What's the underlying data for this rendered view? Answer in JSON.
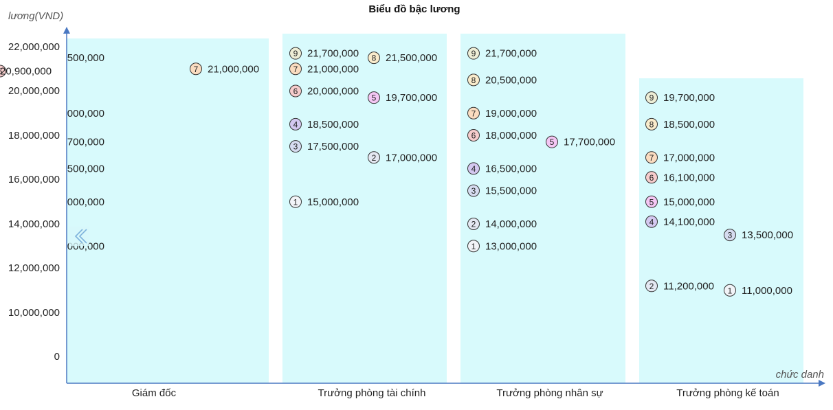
{
  "chart_data": {
    "type": "scatter",
    "title": "Biểu đồ bậc lương",
    "ylabel": "lương(VND)",
    "xlabel": "chức danh",
    "y_ticks": [
      "0",
      "10,000,000",
      "12,000,000",
      "14,000,000",
      "16,000,000",
      "18,000,000",
      "20,000,000",
      "22,000,000"
    ],
    "grid": false,
    "collapse_icon": "double-chevron-left-icon",
    "level_colors": {
      "1": "#f2f4f8",
      "2": "#e4e8f2",
      "3": "#d6dcf0",
      "4": "#d4c8f0",
      "5": "#f4c6f4",
      "6": "#f6cccc",
      "7": "#fadcc0",
      "8": "#faeccc",
      "9": "#eeeed6"
    },
    "categories": [
      {
        "name": "Giám đốc",
        "levels": [
          {
            "level": 7,
            "label": "21,000,000",
            "col": 1
          },
          {
            "level": 6,
            "label": "20,900,000",
            "col": 2
          }
        ],
        "clipped_labels": [
          {
            "label": "500,000",
            "value": 21500000
          },
          {
            "label": "000,000",
            "value": 19000000
          },
          {
            "label": "700,000",
            "value": 17700000
          },
          {
            "label": "500,000",
            "value": 16500000
          },
          {
            "label": "000,000",
            "value": 15000000
          },
          {
            "label": "000,000",
            "value": 13000000
          }
        ]
      },
      {
        "name": "Trưởng phòng tài chính",
        "levels": [
          {
            "level": 9,
            "label": "21,700,000",
            "col": 0
          },
          {
            "level": 8,
            "label": "21,500,000",
            "col": 1
          },
          {
            "level": 7,
            "label": "21,000,000",
            "col": 0
          },
          {
            "level": 6,
            "label": "20,000,000",
            "col": 0
          },
          {
            "level": 5,
            "label": "19,700,000",
            "col": 1
          },
          {
            "level": 4,
            "label": "18,500,000",
            "col": 0
          },
          {
            "level": 3,
            "label": "17,500,000",
            "col": 0
          },
          {
            "level": 2,
            "label": "17,000,000",
            "col": 1
          },
          {
            "level": 1,
            "label": "15,000,000",
            "col": 0
          }
        ]
      },
      {
        "name": "Trưởng phòng nhân sự",
        "levels": [
          {
            "level": 9,
            "label": "21,700,000",
            "col": 0
          },
          {
            "level": 8,
            "label": "20,500,000",
            "col": 0
          },
          {
            "level": 7,
            "label": "19,000,000",
            "col": 0
          },
          {
            "level": 6,
            "label": "18,000,000",
            "col": 0
          },
          {
            "level": 5,
            "label": "17,700,000",
            "col": 1
          },
          {
            "level": 4,
            "label": "16,500,000",
            "col": 0
          },
          {
            "level": 3,
            "label": "15,500,000",
            "col": 0
          },
          {
            "level": 2,
            "label": "14,000,000",
            "col": 0
          },
          {
            "level": 1,
            "label": "13,000,000",
            "col": 0
          }
        ]
      },
      {
        "name": "Trưởng phòng kế toán",
        "levels": [
          {
            "level": 9,
            "label": "19,700,000",
            "col": 0
          },
          {
            "level": 8,
            "label": "18,500,000",
            "col": 0
          },
          {
            "level": 7,
            "label": "17,000,000",
            "col": 0
          },
          {
            "level": 6,
            "label": "16,100,000",
            "col": 0
          },
          {
            "level": 5,
            "label": "15,000,000",
            "col": 0
          },
          {
            "level": 4,
            "label": "14,100,000",
            "col": 0
          },
          {
            "level": 3,
            "label": "13,500,000",
            "col": 1
          },
          {
            "level": 2,
            "label": "11,200,000",
            "col": 0
          },
          {
            "level": 1,
            "label": "11,000,000",
            "col": 1
          }
        ]
      }
    ]
  }
}
